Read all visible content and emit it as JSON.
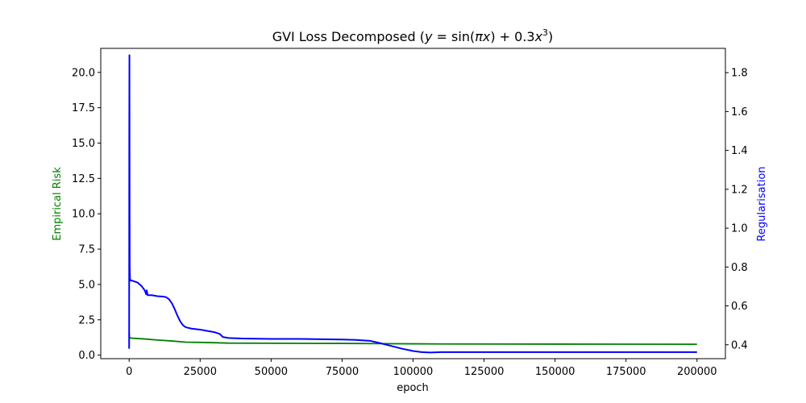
{
  "chart_data": {
    "type": "line",
    "title": "GVI Loss Decomposed (y = sin(πx) + 0.3x³)",
    "title_parts": {
      "prefix": "GVI Loss Decomposed (",
      "y": "y",
      "eq": " = sin(",
      "pi": "π",
      "x1": "x",
      "mid": ") + 0.3",
      "x2": "x",
      "sup": "3",
      "suffix": ")"
    },
    "xlabel": "epoch",
    "ylabel_left": "Empirical Risk",
    "ylabel_right": "Regularisation",
    "xlim": [
      -10000,
      210000
    ],
    "ylim_left": [
      -0.25,
      21.7
    ],
    "ylim_right": [
      0.3285,
      1.925
    ],
    "x_ticks": [
      0,
      25000,
      50000,
      75000,
      100000,
      125000,
      150000,
      175000,
      200000
    ],
    "x_tick_labels": [
      "0",
      "25000",
      "50000",
      "75000",
      "100000",
      "125000",
      "150000",
      "175000",
      "200000"
    ],
    "y_left_ticks": [
      0.0,
      2.5,
      5.0,
      7.5,
      10.0,
      12.5,
      15.0,
      17.5,
      20.0
    ],
    "y_left_tick_labels": [
      "0.0",
      "2.5",
      "5.0",
      "7.5",
      "10.0",
      "12.5",
      "15.0",
      "17.5",
      "20.0"
    ],
    "y_right_ticks": [
      0.4,
      0.6,
      0.8,
      1.0,
      1.2,
      1.4,
      1.6,
      1.8
    ],
    "y_right_tick_labels": [
      "0.4",
      "0.6",
      "0.8",
      "1.0",
      "1.2",
      "1.4",
      "1.6",
      "1.8"
    ],
    "colors": {
      "empirical": "#008000",
      "regularisation": "#0000ff",
      "axes": "#000000"
    },
    "series": [
      {
        "name": "Empirical Risk",
        "axis": "left",
        "color": "#008000",
        "x": [
          0,
          150,
          300,
          1000,
          5000,
          10000,
          15000,
          20000,
          25000,
          30000,
          35000,
          50000,
          75000,
          90000,
          100000,
          110000,
          150000,
          200000
        ],
        "y": [
          1.55,
          1.25,
          1.22,
          1.2,
          1.15,
          1.07,
          1.0,
          0.92,
          0.9,
          0.88,
          0.85,
          0.84,
          0.83,
          0.81,
          0.8,
          0.79,
          0.78,
          0.77
        ]
      },
      {
        "name": "Regularisation",
        "axis": "right",
        "color": "#0000ff",
        "x": [
          0,
          50,
          100,
          150,
          200,
          300,
          500,
          1000,
          3000,
          4500,
          5500,
          6000,
          6200,
          6500,
          8000,
          10000,
          12000,
          13000,
          14000,
          15000,
          16000,
          17000,
          18000,
          19000,
          20000,
          22000,
          25000,
          28000,
          30000,
          32000,
          33000,
          35000,
          40000,
          50000,
          60000,
          70000,
          75000,
          80000,
          83000,
          85000,
          88000,
          92000,
          96000,
          100000,
          103000,
          106000,
          110000,
          125000,
          150000,
          175000,
          200000
        ],
        "y": [
          0.38,
          1.5,
          1.89,
          1.2,
          0.8,
          0.74,
          0.73,
          0.73,
          0.72,
          0.7,
          0.68,
          0.66,
          0.68,
          0.655,
          0.655,
          0.65,
          0.648,
          0.645,
          0.635,
          0.615,
          0.585,
          0.55,
          0.52,
          0.5,
          0.49,
          0.483,
          0.478,
          0.47,
          0.465,
          0.455,
          0.44,
          0.435,
          0.432,
          0.43,
          0.43,
          0.428,
          0.427,
          0.425,
          0.422,
          0.42,
          0.41,
          0.395,
          0.38,
          0.368,
          0.362,
          0.36,
          0.362,
          0.362,
          0.362,
          0.362,
          0.362
        ]
      }
    ]
  }
}
